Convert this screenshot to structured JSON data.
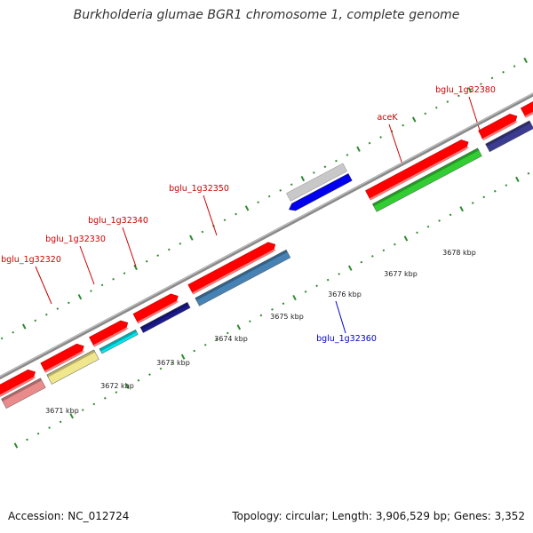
{
  "title": "Burkholderia glumae BGR1 chromosome 1, complete genome",
  "footer": {
    "accession": "Accession: NC_012724",
    "topology": "Topology: circular; Length: 3,906,529 bp; Genes: 3,352"
  },
  "colors": {
    "backbone": "#8a8a8a",
    "tick": "#2f8a2f",
    "forward_label": "#cc0000",
    "reverse_label": "#0000cc",
    "cds": "#ff0000"
  },
  "ruler": [
    "3671 kbp",
    "3672 kbp",
    "3673 kbp",
    "3674 kbp",
    "3675 kbp",
    "3676 kbp",
    "3677 kbp",
    "3678 kbp"
  ],
  "genes": [
    {
      "label": "bglu_1g32320",
      "color": "#e98b8b",
      "strand": "forward"
    },
    {
      "label": "",
      "color": "#f0e68c",
      "strand": "forward"
    },
    {
      "label": "bglu_1g32330",
      "color": "#00e5ee",
      "strand": "forward"
    },
    {
      "label": "bglu_1g32340",
      "color": "#1a1a8c",
      "strand": "forward"
    },
    {
      "label": "bglu_1g32350",
      "color": "#4682b4",
      "strand": "forward"
    },
    {
      "label": "bglu_1g32360",
      "color": "#0000ee",
      "strand": "reverse"
    },
    {
      "label": "aceK",
      "color": "#32cd32",
      "strand": "forward"
    },
    {
      "label": "bglu_1g32380",
      "color": "#3b3b8f",
      "strand": "forward"
    },
    {
      "label": "",
      "color": "#7b68ee",
      "strand": "forward"
    }
  ]
}
